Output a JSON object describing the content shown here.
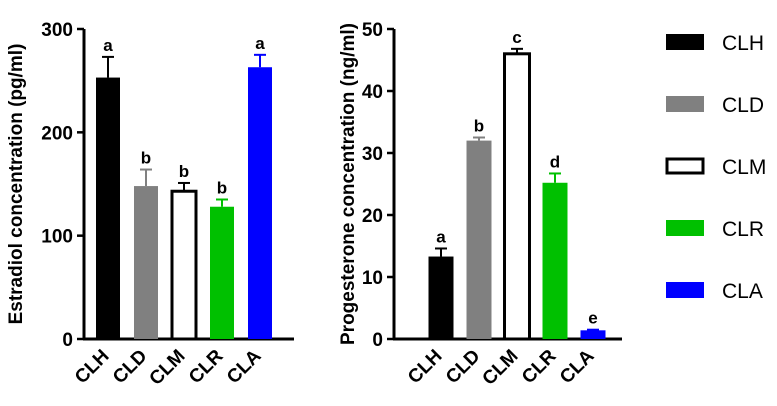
{
  "legend": {
    "items": [
      {
        "label": "CLH",
        "color": "#000000",
        "fill": "#000000"
      },
      {
        "label": "CLD",
        "color": "#808080",
        "fill": "#808080"
      },
      {
        "label": "CLM",
        "color": "#000000",
        "fill": "#ffffff"
      },
      {
        "label": "CLR",
        "color": "#00c000",
        "fill": "#00c000"
      },
      {
        "label": "CLA",
        "color": "#0000ff",
        "fill": "#0000ff"
      }
    ],
    "placement": "right"
  },
  "chart_data": [
    {
      "type": "bar",
      "categories": [
        "CLH",
        "CLD",
        "CLM",
        "CLR",
        "CLA"
      ],
      "values": [
        253,
        148,
        143,
        128,
        263
      ],
      "errors": [
        20,
        16,
        8,
        7,
        12
      ],
      "significance": [
        "a",
        "b",
        "b",
        "b",
        "a"
      ],
      "colors": [
        "#000000",
        "#808080",
        "#ffffff",
        "#00c000",
        "#0000ff"
      ],
      "ylabel": "Estradiol concentration (pg/ml)",
      "xlabel": "",
      "ylim": [
        0,
        300
      ],
      "yticks": [
        0,
        100,
        200,
        300
      ],
      "grid": false
    },
    {
      "type": "bar",
      "categories": [
        "CLH",
        "CLD",
        "CLM",
        "CLR",
        "CLA"
      ],
      "values": [
        13.3,
        32.0,
        46.0,
        25.2,
        1.4
      ],
      "errors": [
        1.3,
        0.5,
        0.8,
        1.5,
        0.1
      ],
      "significance": [
        "a",
        "b",
        "c",
        "d",
        "e"
      ],
      "colors": [
        "#000000",
        "#808080",
        "#ffffff",
        "#00c000",
        "#0000ff"
      ],
      "ylabel": "Progesterone concentration (ng/ml)",
      "xlabel": "",
      "ylim": [
        0,
        50
      ],
      "yticks": [
        0,
        10,
        20,
        30,
        40,
        50
      ],
      "grid": false
    }
  ]
}
